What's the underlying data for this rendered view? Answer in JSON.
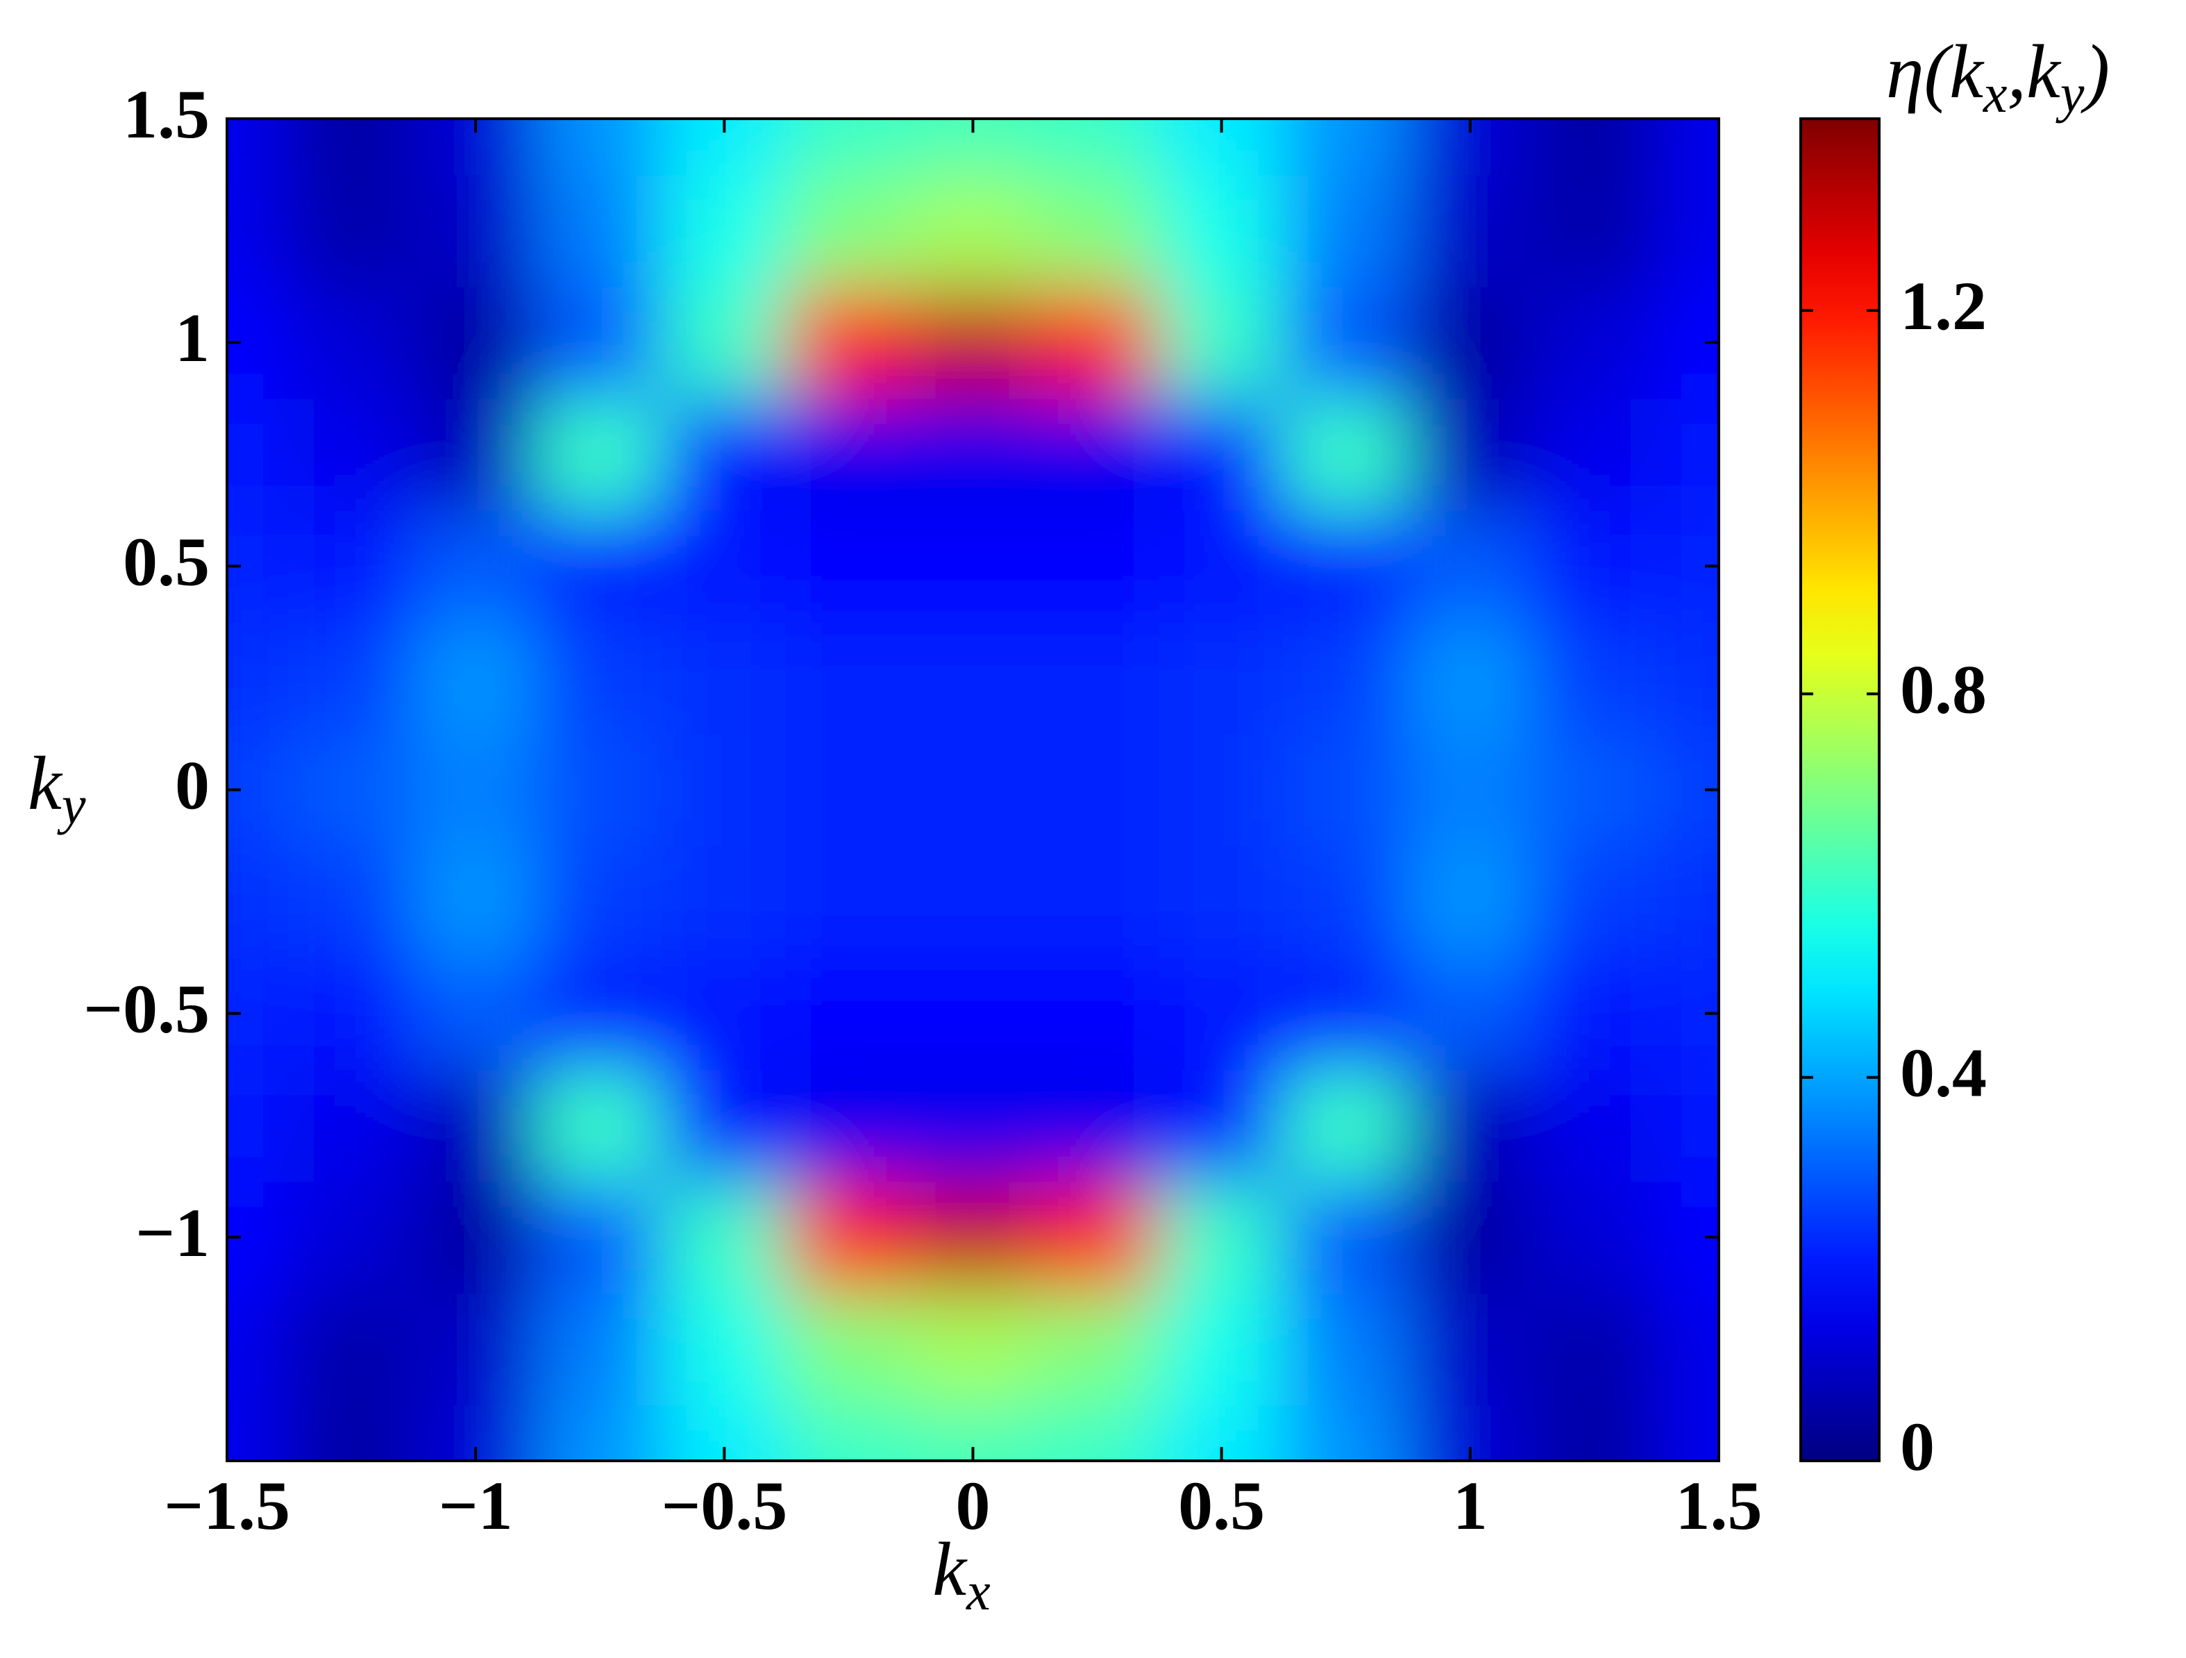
{
  "chart_data": {
    "type": "heatmap",
    "xlabel": [
      {
        "text": "k"
      },
      {
        "text": "x",
        "sub": true
      }
    ],
    "ylabel": [
      {
        "text": "k"
      },
      {
        "text": "y",
        "sub": true
      }
    ],
    "colorbar_label": [
      {
        "text": "η(k"
      },
      {
        "text": "x",
        "sub": true
      },
      {
        "text": ",k"
      },
      {
        "text": "y",
        "sub": true
      },
      {
        "text": ")"
      }
    ],
    "colormap": "jet",
    "clim": [
      0,
      1.4
    ],
    "cticks": [
      0,
      0.4,
      0.8,
      1.2
    ],
    "xlim": [
      -1.5,
      1.5
    ],
    "ylim": [
      -1.5,
      1.5
    ],
    "xticks": [
      {
        "value": -1.5,
        "label": "−1.5"
      },
      {
        "value": -1,
        "label": "−1"
      },
      {
        "value": -0.5,
        "label": "−0.5"
      },
      0,
      0.5,
      1,
      1.5
    ],
    "yticks": [
      {
        "value": -1,
        "label": "−1"
      },
      {
        "value": -0.5,
        "label": "−0.5"
      },
      0,
      0.5,
      1,
      1.5
    ],
    "x": [
      -1.5,
      -1.25,
      -1,
      -0.75,
      -0.5,
      -0.25,
      0,
      0.25,
      0.5,
      0.75,
      1,
      1.25,
      1.5
    ],
    "y": [
      -1.5,
      -1.25,
      -1,
      -0.75,
      -0.5,
      -0.25,
      0,
      0.25,
      0.5,
      0.75,
      1,
      1.25,
      1.5
    ],
    "z": [
      [
        0.15,
        0.05,
        0.12,
        0.38,
        0.5,
        0.6,
        0.62,
        0.6,
        0.5,
        0.38,
        0.12,
        0.05,
        0.15
      ],
      [
        0.15,
        0.06,
        0.1,
        0.35,
        0.55,
        0.7,
        0.75,
        0.7,
        0.55,
        0.35,
        0.1,
        0.06,
        0.15
      ],
      [
        0.18,
        0.12,
        0.05,
        0.3,
        0.6,
        1.2,
        1.3,
        1.2,
        0.6,
        0.3,
        0.05,
        0.12,
        0.18
      ],
      [
        0.2,
        0.15,
        0.08,
        0.6,
        0.2,
        0.15,
        0.15,
        0.15,
        0.2,
        0.6,
        0.08,
        0.15,
        0.2
      ],
      [
        0.22,
        0.2,
        0.3,
        0.22,
        0.2,
        0.18,
        0.18,
        0.18,
        0.2,
        0.22,
        0.3,
        0.2,
        0.22
      ],
      [
        0.24,
        0.26,
        0.38,
        0.26,
        0.24,
        0.22,
        0.22,
        0.22,
        0.24,
        0.26,
        0.38,
        0.26,
        0.24
      ],
      [
        0.26,
        0.3,
        0.35,
        0.28,
        0.24,
        0.22,
        0.22,
        0.22,
        0.24,
        0.28,
        0.35,
        0.3,
        0.26
      ],
      [
        0.24,
        0.26,
        0.38,
        0.26,
        0.24,
        0.22,
        0.22,
        0.22,
        0.24,
        0.26,
        0.38,
        0.26,
        0.24
      ],
      [
        0.22,
        0.2,
        0.3,
        0.22,
        0.2,
        0.18,
        0.18,
        0.18,
        0.2,
        0.22,
        0.3,
        0.2,
        0.22
      ],
      [
        0.2,
        0.15,
        0.08,
        0.6,
        0.2,
        0.15,
        0.15,
        0.15,
        0.2,
        0.6,
        0.08,
        0.15,
        0.2
      ],
      [
        0.18,
        0.12,
        0.05,
        0.3,
        0.6,
        1.2,
        1.3,
        1.2,
        0.6,
        0.3,
        0.05,
        0.12,
        0.18
      ],
      [
        0.15,
        0.06,
        0.1,
        0.35,
        0.55,
        0.7,
        0.75,
        0.7,
        0.55,
        0.35,
        0.1,
        0.06,
        0.15
      ],
      [
        0.15,
        0.05,
        0.12,
        0.38,
        0.5,
        0.6,
        0.62,
        0.6,
        0.5,
        0.38,
        0.12,
        0.05,
        0.15
      ]
    ]
  }
}
